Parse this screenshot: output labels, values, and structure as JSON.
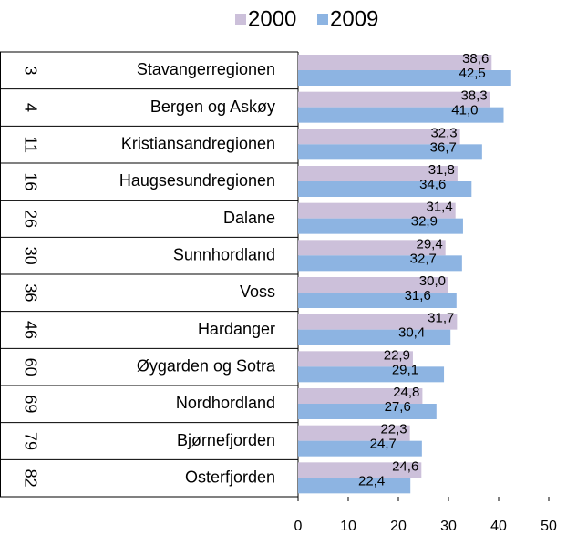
{
  "chart_data": {
    "type": "bar",
    "orientation": "horizontal",
    "ranks": [
      3,
      4,
      11,
      16,
      26,
      30,
      36,
      46,
      60,
      69,
      79,
      82
    ],
    "categories": [
      "Stavangerregionen",
      "Bergen og Askøy",
      "Kristiansandregionen",
      "Haugsesundregionen",
      "Dalane",
      "Sunnhordland",
      "Voss",
      "Hardanger",
      "Øygarden og Sotra",
      "Nordhordland",
      "Bjørnefjorden",
      "Osterfjorden"
    ],
    "series": [
      {
        "name": "2000",
        "color": "#ccc0da",
        "values": [
          38.6,
          38.3,
          32.3,
          31.8,
          31.4,
          29.4,
          30.0,
          31.7,
          22.9,
          24.8,
          22.3,
          24.6
        ],
        "value_labels": [
          "38,6",
          "38,3",
          "32,3",
          "31,8",
          "31,4",
          "29,4",
          "30,0",
          "31,7",
          "22,9",
          "24,8",
          "22,3",
          "24,6"
        ]
      },
      {
        "name": "2009",
        "color": "#8db4e2",
        "values": [
          42.5,
          41.0,
          36.7,
          34.6,
          32.9,
          32.7,
          31.6,
          30.4,
          29.1,
          27.6,
          24.7,
          22.4
        ],
        "value_labels": [
          "42,5",
          "41,0",
          "36,7",
          "34,6",
          "32,9",
          "32,7",
          "31,6",
          "30,4",
          "29,1",
          "27,6",
          "24,7",
          "22,4"
        ]
      }
    ],
    "xlim": [
      0,
      50
    ],
    "xticks": [
      0,
      10,
      20,
      30,
      40,
      50
    ],
    "legend": "top"
  }
}
